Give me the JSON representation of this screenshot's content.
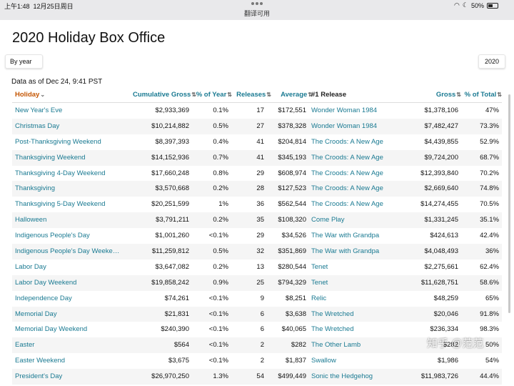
{
  "status": {
    "time": "上午1:48",
    "date": "12月25日周日",
    "center": "翻译可用",
    "battery": "50%"
  },
  "page": {
    "title": "2020 Holiday Box Office",
    "view_button": "By year",
    "year_button": "2020",
    "as_of": "Data as of Dec 24, 9:41 PST"
  },
  "columns": {
    "holiday": "Holiday",
    "cumulative": "Cumulative Gross",
    "pct_year": "% of Year",
    "releases": "Releases",
    "average": "Average",
    "release1": "#1 Release",
    "gross": "Gross",
    "pct_total": "% of Total"
  },
  "rows": [
    {
      "holiday": "New Year's Eve",
      "cumulative": "$2,933,369",
      "pct_year": "0.1%",
      "releases": "17",
      "average": "$172,551",
      "release1": "Wonder Woman 1984",
      "gross": "$1,378,106",
      "pct_total": "47%"
    },
    {
      "holiday": "Christmas Day",
      "cumulative": "$10,214,882",
      "pct_year": "0.5%",
      "releases": "27",
      "average": "$378,328",
      "release1": "Wonder Woman 1984",
      "gross": "$7,482,427",
      "pct_total": "73.3%"
    },
    {
      "holiday": "Post-Thanksgiving Weekend",
      "cumulative": "$8,397,393",
      "pct_year": "0.4%",
      "releases": "41",
      "average": "$204,814",
      "release1": "The Croods: A New Age",
      "gross": "$4,439,855",
      "pct_total": "52.9%"
    },
    {
      "holiday": "Thanksgiving Weekend",
      "cumulative": "$14,152,936",
      "pct_year": "0.7%",
      "releases": "41",
      "average": "$345,193",
      "release1": "The Croods: A New Age",
      "gross": "$9,724,200",
      "pct_total": "68.7%"
    },
    {
      "holiday": "Thanksgiving 4-Day Weekend",
      "cumulative": "$17,660,248",
      "pct_year": "0.8%",
      "releases": "29",
      "average": "$608,974",
      "release1": "The Croods: A New Age",
      "gross": "$12,393,840",
      "pct_total": "70.2%"
    },
    {
      "holiday": "Thanksgiving",
      "cumulative": "$3,570,668",
      "pct_year": "0.2%",
      "releases": "28",
      "average": "$127,523",
      "release1": "The Croods: A New Age",
      "gross": "$2,669,640",
      "pct_total": "74.8%"
    },
    {
      "holiday": "Thanksgiving 5-Day Weekend",
      "cumulative": "$20,251,599",
      "pct_year": "1%",
      "releases": "36",
      "average": "$562,544",
      "release1": "The Croods: A New Age",
      "gross": "$14,274,455",
      "pct_total": "70.5%"
    },
    {
      "holiday": "Halloween",
      "cumulative": "$3,791,211",
      "pct_year": "0.2%",
      "releases": "35",
      "average": "$108,320",
      "release1": "Come Play",
      "gross": "$1,331,245",
      "pct_total": "35.1%"
    },
    {
      "holiday": "Indigenous People's Day",
      "cumulative": "$1,001,260",
      "pct_year": "<0.1%",
      "releases": "29",
      "average": "$34,526",
      "release1": "The War with Grandpa",
      "gross": "$424,613",
      "pct_total": "42.4%"
    },
    {
      "holiday": "Indigenous People's Day Weeke…",
      "cumulative": "$11,259,812",
      "pct_year": "0.5%",
      "releases": "32",
      "average": "$351,869",
      "release1": "The War with Grandpa",
      "gross": "$4,048,493",
      "pct_total": "36%"
    },
    {
      "holiday": "Labor Day",
      "cumulative": "$3,647,082",
      "pct_year": "0.2%",
      "releases": "13",
      "average": "$280,544",
      "release1": "Tenet",
      "gross": "$2,275,661",
      "pct_total": "62.4%"
    },
    {
      "holiday": "Labor Day Weekend",
      "cumulative": "$19,858,242",
      "pct_year": "0.9%",
      "releases": "25",
      "average": "$794,329",
      "release1": "Tenet",
      "gross": "$11,628,751",
      "pct_total": "58.6%"
    },
    {
      "holiday": "Independence Day",
      "cumulative": "$74,261",
      "pct_year": "<0.1%",
      "releases": "9",
      "average": "$8,251",
      "release1": "Relic",
      "gross": "$48,259",
      "pct_total": "65%"
    },
    {
      "holiday": "Memorial Day",
      "cumulative": "$21,831",
      "pct_year": "<0.1%",
      "releases": "6",
      "average": "$3,638",
      "release1": "The Wretched",
      "gross": "$20,046",
      "pct_total": "91.8%"
    },
    {
      "holiday": "Memorial Day Weekend",
      "cumulative": "$240,390",
      "pct_year": "<0.1%",
      "releases": "6",
      "average": "$40,065",
      "release1": "The Wretched",
      "gross": "$236,334",
      "pct_total": "98.3%"
    },
    {
      "holiday": "Easter",
      "cumulative": "$564",
      "pct_year": "<0.1%",
      "releases": "2",
      "average": "$282",
      "release1": "The Other Lamb",
      "gross": "$282",
      "pct_total": "50%"
    },
    {
      "holiday": "Easter Weekend",
      "cumulative": "$3,675",
      "pct_year": "<0.1%",
      "releases": "2",
      "average": "$1,837",
      "release1": "Swallow",
      "gross": "$1,986",
      "pct_total": "54%"
    },
    {
      "holiday": "President's Day",
      "cumulative": "$26,970,250",
      "pct_year": "1.3%",
      "releases": "54",
      "average": "$499,449",
      "release1": "Sonic the Hedgehog",
      "gross": "$11,983,726",
      "pct_total": "44.4%"
    }
  ],
  "watermark": "知乎 @范范"
}
